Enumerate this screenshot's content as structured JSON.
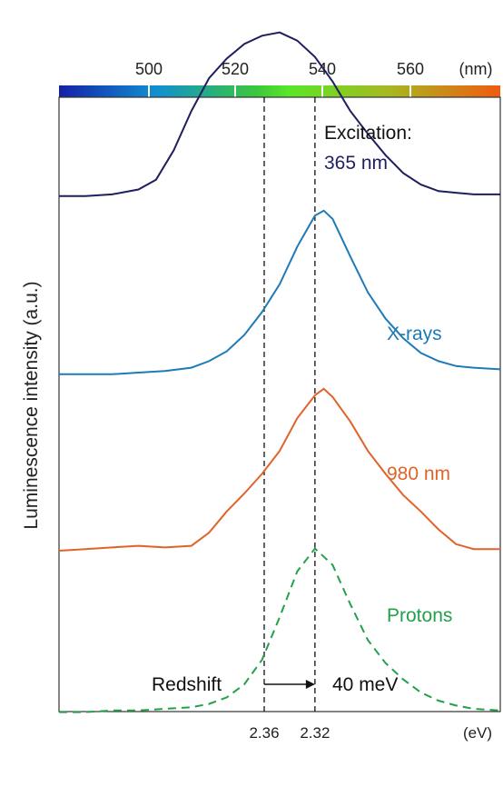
{
  "chart_data": {
    "type": "line",
    "ylabel": "Luminescence intensity (a.u.)",
    "top_axis": {
      "ticks": [
        "500",
        "520",
        "540",
        "560"
      ],
      "unit": "(nm)",
      "range_nm": [
        480,
        580
      ]
    },
    "bottom_axis": {
      "ticks": [
        "2.36",
        "2.32"
      ],
      "unit": "(eV)"
    },
    "colorbar": {
      "start": "#1420a8",
      "mid": "#3cc83a",
      "end": "#f05a10"
    },
    "x_range_nm": [
      480,
      580
    ],
    "reference_lines_nm": [
      526.5,
      538
    ],
    "grid": false,
    "legend": "none",
    "series": [
      {
        "name": "Excitation:\n365 nm",
        "color": "#1f1f5e",
        "dashed": false,
        "baseline": 0.78,
        "x": [
          480,
          486,
          492,
          498,
          502,
          506,
          510,
          514,
          518,
          522,
          526,
          530,
          534,
          538,
          542,
          546,
          550,
          554,
          558,
          562,
          566,
          570,
          574,
          580
        ],
        "y": [
          0,
          0,
          0.01,
          0.04,
          0.1,
          0.28,
          0.52,
          0.72,
          0.84,
          0.93,
          0.98,
          1.0,
          0.95,
          0.85,
          0.7,
          0.52,
          0.38,
          0.25,
          0.14,
          0.07,
          0.03,
          0.02,
          0.01,
          0.01
        ]
      },
      {
        "name": "X-rays",
        "color": "#1f7ab8",
        "dashed": false,
        "baseline": 0.49,
        "x": [
          480,
          486,
          492,
          498,
          504,
          510,
          514,
          518,
          522,
          526,
          530,
          534,
          538,
          540,
          542,
          546,
          550,
          554,
          558,
          562,
          566,
          570,
          574,
          580
        ],
        "y": [
          0,
          0,
          0,
          0.01,
          0.02,
          0.04,
          0.08,
          0.14,
          0.24,
          0.38,
          0.55,
          0.78,
          0.97,
          1.0,
          0.95,
          0.72,
          0.5,
          0.34,
          0.22,
          0.13,
          0.08,
          0.05,
          0.04,
          0.03
        ]
      },
      {
        "name": "980 nm",
        "color": "#e0632a",
        "dashed": false,
        "baseline": 0.2,
        "x": [
          480,
          486,
          492,
          498,
          504,
          510,
          514,
          518,
          522,
          526,
          530,
          534,
          538,
          540,
          542,
          546,
          550,
          554,
          558,
          562,
          566,
          570,
          574,
          580
        ],
        "y": [
          0.01,
          0.02,
          0.03,
          0.04,
          0.03,
          0.04,
          0.12,
          0.25,
          0.36,
          0.48,
          0.62,
          0.82,
          0.96,
          1.0,
          0.95,
          0.8,
          0.62,
          0.48,
          0.35,
          0.25,
          0.14,
          0.05,
          0.02,
          0.02
        ]
      },
      {
        "name": "Protons",
        "color": "#23a04a",
        "dashed": true,
        "baseline": -0.06,
        "x": [
          480,
          486,
          492,
          498,
          504,
          510,
          514,
          518,
          522,
          526,
          530,
          534,
          538,
          542,
          546,
          550,
          554,
          558,
          562,
          566,
          570,
          574,
          580
        ],
        "y": [
          0,
          0,
          0.01,
          0.01,
          0.02,
          0.03,
          0.05,
          0.09,
          0.17,
          0.32,
          0.58,
          0.86,
          1.0,
          0.9,
          0.66,
          0.44,
          0.3,
          0.2,
          0.12,
          0.07,
          0.04,
          0.02,
          0.01
        ]
      }
    ],
    "annotations": {
      "redshift_label": "Redshift",
      "redshift_value": "40 meV"
    }
  }
}
